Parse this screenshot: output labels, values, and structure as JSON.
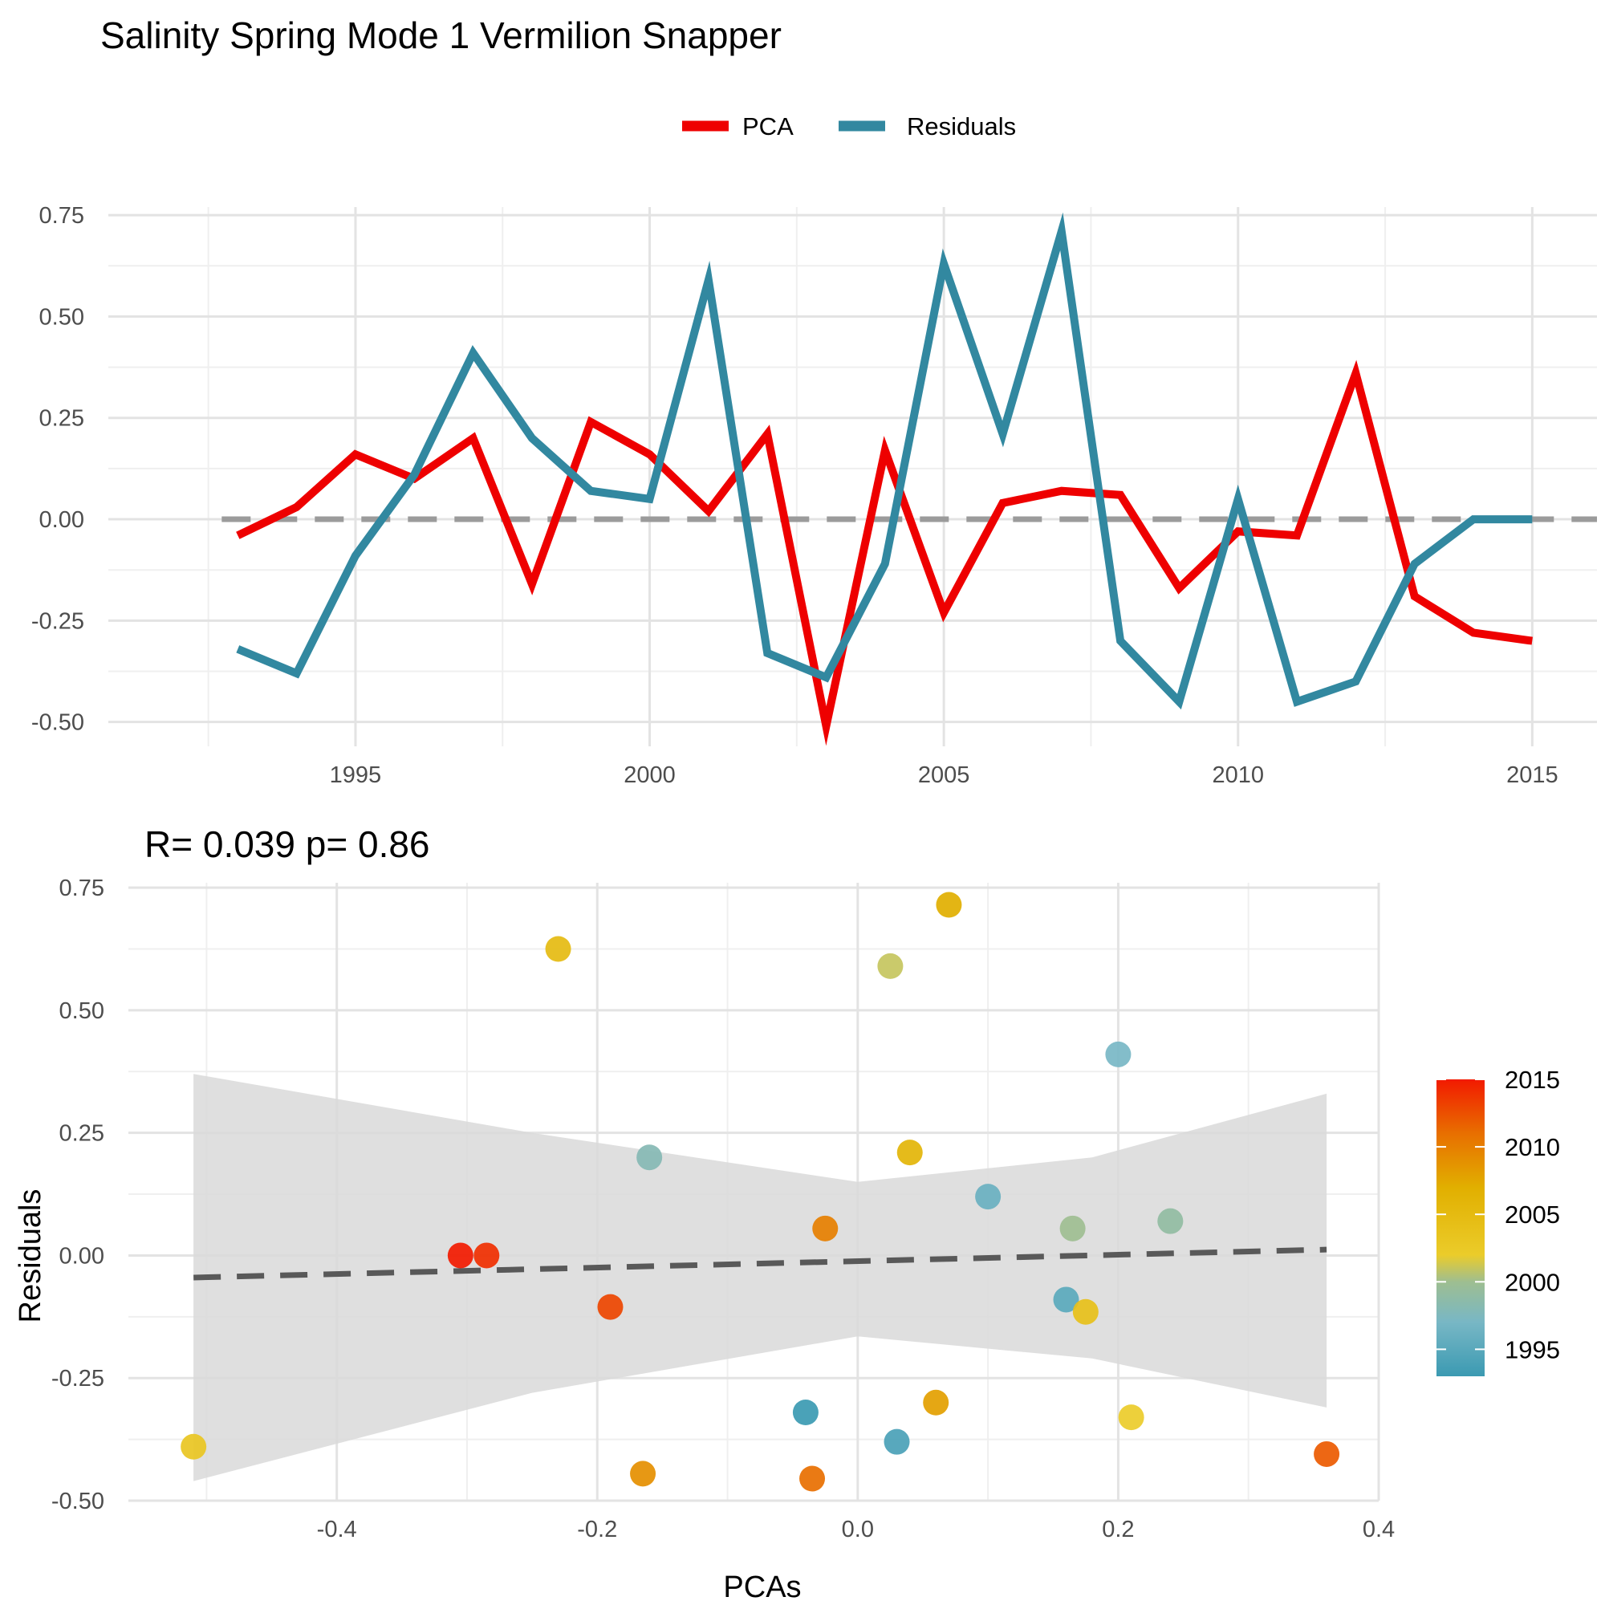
{
  "title": "Salinity Spring Mode 1 Vermilion Snapper",
  "legend": {
    "items": [
      {
        "label": "PCA",
        "color": "#ee0000"
      },
      {
        "label": "Residuals",
        "color": "#3288a0"
      }
    ]
  },
  "chart_data": [
    {
      "type": "line",
      "x": [
        1993,
        1994,
        1995,
        1996,
        1997,
        1998,
        1999,
        2000,
        2001,
        2002,
        2003,
        2004,
        2005,
        2006,
        2007,
        2008,
        2009,
        2010,
        2011,
        2012,
        2013,
        2014,
        2015
      ],
      "series": [
        {
          "name": "PCA",
          "color": "#ee0000",
          "values": [
            -0.04,
            0.03,
            0.16,
            0.1,
            0.2,
            -0.16,
            0.24,
            0.16,
            0.02,
            0.21,
            -0.51,
            0.17,
            -0.23,
            0.04,
            0.07,
            0.06,
            -0.17,
            -0.03,
            -0.04,
            0.36,
            -0.19,
            -0.28,
            -0.3
          ]
        },
        {
          "name": "Residuals",
          "color": "#3288a0",
          "values": [
            -0.32,
            -0.38,
            -0.09,
            0.11,
            0.41,
            0.2,
            0.07,
            0.05,
            0.59,
            -0.33,
            -0.39,
            -0.11,
            0.63,
            0.21,
            0.71,
            -0.3,
            -0.45,
            0.05,
            -0.45,
            -0.4,
            -0.11,
            0.0,
            0.0
          ]
        }
      ],
      "xticks": [
        1995,
        2000,
        2005,
        2010,
        2015
      ],
      "yticks": [
        "0.75",
        "0.50",
        "0.25",
        "0.00",
        "-0.25",
        "-0.50"
      ],
      "xlim": [
        1990.8,
        2016.1
      ],
      "ylim": [
        -0.56,
        0.77
      ],
      "zero_line": 0
    },
    {
      "type": "scatter",
      "subtitle": "R= 0.039  p= 0.86",
      "xlabel": "PCAs",
      "ylabel": "Residuals",
      "xticks": [
        "-0.4",
        "-0.2",
        "0.0",
        "0.2",
        "0.4"
      ],
      "yticks": [
        "0.75",
        "0.50",
        "0.25",
        "0.00",
        "-0.25",
        "-0.50"
      ],
      "xlim": [
        -0.56,
        0.4
      ],
      "ylim": [
        -0.5,
        0.76
      ],
      "points": [
        {
          "year": 1993,
          "x": -0.04,
          "y": -0.32
        },
        {
          "year": 1994,
          "x": 0.03,
          "y": -0.38
        },
        {
          "year": 1995,
          "x": 0.16,
          "y": -0.09
        },
        {
          "year": 1996,
          "x": 0.1,
          "y": 0.12
        },
        {
          "year": 1997,
          "x": 0.2,
          "y": 0.41
        },
        {
          "year": 1998,
          "x": -0.16,
          "y": 0.2
        },
        {
          "year": 1999,
          "x": 0.24,
          "y": 0.07
        },
        {
          "year": 2000,
          "x": 0.165,
          "y": 0.055
        },
        {
          "year": 2001,
          "x": 0.025,
          "y": 0.59
        },
        {
          "year": 2002,
          "x": 0.21,
          "y": -0.33
        },
        {
          "year": 2003,
          "x": -0.51,
          "y": -0.39
        },
        {
          "year": 2004,
          "x": 0.175,
          "y": -0.115
        },
        {
          "year": 2005,
          "x": -0.23,
          "y": 0.625
        },
        {
          "year": 2006,
          "x": 0.04,
          "y": 0.21
        },
        {
          "year": 2007,
          "x": 0.07,
          "y": 0.715
        },
        {
          "year": 2008,
          "x": 0.06,
          "y": -0.3
        },
        {
          "year": 2009,
          "x": -0.165,
          "y": -0.445
        },
        {
          "year": 2010,
          "x": -0.025,
          "y": 0.055
        },
        {
          "year": 2011,
          "x": -0.035,
          "y": -0.455
        },
        {
          "year": 2012,
          "x": 0.36,
          "y": -0.405
        },
        {
          "year": 2013,
          "x": -0.19,
          "y": -0.105
        },
        {
          "year": 2014,
          "x": -0.285,
          "y": 0.0
        },
        {
          "year": 2015,
          "x": -0.305,
          "y": 0.0
        }
      ],
      "fit": {
        "x": [
          -0.51,
          0.36
        ],
        "y": [
          -0.045,
          0.012
        ],
        "ci_upper_at_x": [
          [
            -0.51,
            0.37
          ],
          [
            -0.25,
            0.25
          ],
          [
            0.0,
            0.15
          ],
          [
            0.18,
            0.2
          ],
          [
            0.36,
            0.33
          ]
        ],
        "ci_lower_at_x": [
          [
            -0.51,
            -0.46
          ],
          [
            -0.25,
            -0.28
          ],
          [
            0.0,
            -0.165
          ],
          [
            0.18,
            -0.21
          ],
          [
            0.36,
            -0.31
          ]
        ]
      },
      "colorbar": {
        "ticks": [
          "2015",
          "2010",
          "2005",
          "2000",
          "1995"
        ],
        "range": [
          1993,
          2015
        ],
        "stops": [
          {
            "year": 1993,
            "color": "#3b9ab2"
          },
          {
            "year": 1997,
            "color": "#78b7c5"
          },
          {
            "year": 2000,
            "color": "#9ebe91"
          },
          {
            "year": 2002,
            "color": "#ebcc2a"
          },
          {
            "year": 2007,
            "color": "#e1af00"
          },
          {
            "year": 2011,
            "color": "#e86f00"
          },
          {
            "year": 2015,
            "color": "#f21a00"
          }
        ]
      }
    }
  ]
}
